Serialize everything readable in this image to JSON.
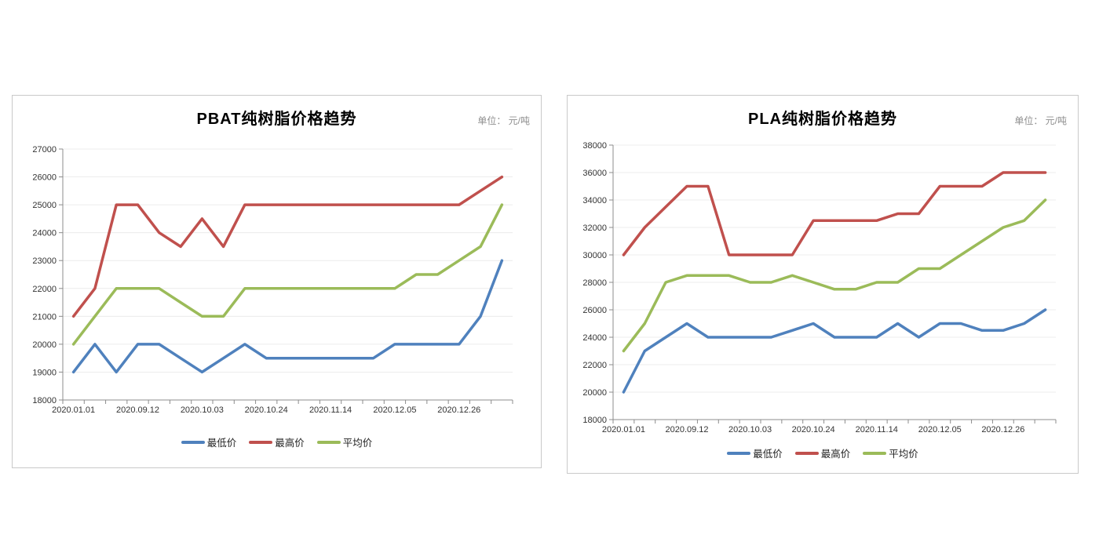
{
  "page": {
    "background": "#ffffff"
  },
  "charts": [
    {
      "title": "PBAT纯树脂价格趋势",
      "unit_label": "单位： 元/吨",
      "legend": [
        {
          "label": "最低价",
          "color": "#4F81BD"
        },
        {
          "label": "最高价",
          "color": "#C0504D"
        },
        {
          "label": "平均价",
          "color": "#9BBB59"
        }
      ],
      "chart_data": {
        "type": "line",
        "title": "PBAT纯树脂价格趋势",
        "unit": "元/吨",
        "ylim": [
          18000,
          27000
        ],
        "y_step": 1000,
        "grid": true,
        "legend_position": "bottom",
        "n_points": 21,
        "x_tick_labels": [
          "2020.01.01",
          "2020.09.12",
          "2020.10.03",
          "2020.10.24",
          "2020.11.14",
          "2020.12.05",
          "2020.12.26"
        ],
        "x_tick_positions": [
          0,
          3,
          6,
          9,
          12,
          15,
          18
        ],
        "series": [
          {
            "name": "最低价",
            "color": "#4F81BD",
            "values": [
              19000,
              20000,
              19000,
              20000,
              20000,
              19500,
              19000,
              19500,
              20000,
              19500,
              19500,
              19500,
              19500,
              19500,
              19500,
              20000,
              20000,
              20000,
              20000,
              21000,
              23000
            ]
          },
          {
            "name": "最高价",
            "color": "#C0504D",
            "values": [
              21000,
              22000,
              25000,
              25000,
              24000,
              23500,
              24500,
              23500,
              25000,
              25000,
              25000,
              25000,
              25000,
              25000,
              25000,
              25000,
              25000,
              25000,
              25000,
              25500,
              26000
            ]
          },
          {
            "name": "平均价",
            "color": "#9BBB59",
            "values": [
              20000,
              21000,
              22000,
              22000,
              22000,
              21500,
              21000,
              21000,
              22000,
              22000,
              22000,
              22000,
              22000,
              22000,
              22000,
              22000,
              22500,
              22500,
              23000,
              23500,
              25000
            ]
          }
        ]
      }
    },
    {
      "title": "PLA纯树脂价格趋势",
      "unit_label": "单位： 元/吨",
      "legend": [
        {
          "label": "最低价",
          "color": "#4F81BD"
        },
        {
          "label": "最高价",
          "color": "#C0504D"
        },
        {
          "label": "平均价",
          "color": "#9BBB59"
        }
      ],
      "chart_data": {
        "type": "line",
        "title": "PLA纯树脂价格趋势",
        "unit": "元/吨",
        "ylim": [
          18000,
          38000
        ],
        "y_step": 2000,
        "grid": true,
        "legend_position": "bottom",
        "n_points": 21,
        "x_tick_labels": [
          "2020.01.01",
          "2020.09.12",
          "2020.10.03",
          "2020.10.24",
          "2020.11.14",
          "2020.12.05",
          "2020.12.26"
        ],
        "x_tick_positions": [
          0,
          3,
          6,
          9,
          12,
          15,
          18
        ],
        "series": [
          {
            "name": "最低价",
            "color": "#4F81BD",
            "values": [
              20000,
              23000,
              24000,
              25000,
              24000,
              24000,
              24000,
              24000,
              24500,
              25000,
              24000,
              24000,
              24000,
              25000,
              24000,
              25000,
              25000,
              24500,
              24500,
              25000,
              26000
            ]
          },
          {
            "name": "最高价",
            "color": "#C0504D",
            "values": [
              30000,
              32000,
              33500,
              35000,
              35000,
              30000,
              30000,
              30000,
              30000,
              32500,
              32500,
              32500,
              32500,
              33000,
              33000,
              35000,
              35000,
              35000,
              36000,
              36000,
              36000
            ]
          },
          {
            "name": "平均价",
            "color": "#9BBB59",
            "values": [
              23000,
              25000,
              28000,
              28500,
              28500,
              28500,
              28000,
              28000,
              28500,
              28000,
              27500,
              27500,
              28000,
              28000,
              29000,
              29000,
              30000,
              31000,
              32000,
              32500,
              34000
            ]
          }
        ]
      }
    }
  ]
}
